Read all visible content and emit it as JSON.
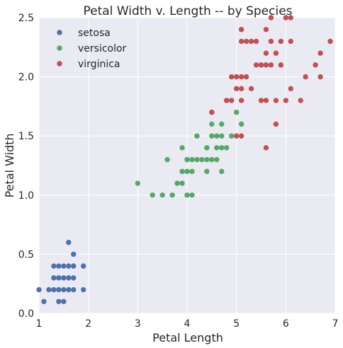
{
  "chart_data": {
    "type": "scatter",
    "title": "Petal Width v. Length -- by Species",
    "xlabel": "Petal Length",
    "ylabel": "Petal Width",
    "xlim": [
      1,
      7
    ],
    "ylim": [
      0.0,
      2.5
    ],
    "xticks": [
      "1",
      "2",
      "3",
      "4",
      "5",
      "6",
      "7"
    ],
    "yticks": [
      "0.0",
      "0.5",
      "1.0",
      "1.5",
      "2.0",
      "2.5"
    ],
    "grid": true,
    "legend_position": "top-left",
    "background_color": "#eaeaf2",
    "series": [
      {
        "name": "setosa",
        "color": "#4c72b0",
        "points": [
          [
            1.0,
            0.2
          ],
          [
            1.1,
            0.1
          ],
          [
            1.2,
            0.2
          ],
          [
            1.3,
            0.2
          ],
          [
            1.3,
            0.3
          ],
          [
            1.3,
            0.4
          ],
          [
            1.4,
            0.1
          ],
          [
            1.4,
            0.2
          ],
          [
            1.4,
            0.3
          ],
          [
            1.5,
            0.1
          ],
          [
            1.5,
            0.2
          ],
          [
            1.5,
            0.4
          ],
          [
            1.6,
            0.2
          ],
          [
            1.6,
            0.4
          ],
          [
            1.6,
            0.6
          ],
          [
            1.7,
            0.2
          ],
          [
            1.7,
            0.3
          ],
          [
            1.7,
            0.4
          ],
          [
            1.7,
            0.5
          ],
          [
            1.9,
            0.2
          ],
          [
            1.9,
            0.4
          ],
          [
            1.5,
            0.3
          ],
          [
            1.6,
            0.3
          ],
          [
            1.4,
            0.4
          ]
        ]
      },
      {
        "name": "versicolor",
        "color": "#55a868",
        "points": [
          [
            3.0,
            1.1
          ],
          [
            3.3,
            1.0
          ],
          [
            3.5,
            1.0
          ],
          [
            3.6,
            1.3
          ],
          [
            3.7,
            1.0
          ],
          [
            3.8,
            1.1
          ],
          [
            3.9,
            1.1
          ],
          [
            3.9,
            1.2
          ],
          [
            3.9,
            1.4
          ],
          [
            4.0,
            1.0
          ],
          [
            4.0,
            1.2
          ],
          [
            4.0,
            1.3
          ],
          [
            4.1,
            1.0
          ],
          [
            4.1,
            1.2
          ],
          [
            4.1,
            1.3
          ],
          [
            4.2,
            1.3
          ],
          [
            4.2,
            1.5
          ],
          [
            4.3,
            1.3
          ],
          [
            4.4,
            1.2
          ],
          [
            4.4,
            1.3
          ],
          [
            4.4,
            1.4
          ],
          [
            4.5,
            1.3
          ],
          [
            4.5,
            1.5
          ],
          [
            4.5,
            1.6
          ],
          [
            4.5,
            1.7
          ],
          [
            4.6,
            1.3
          ],
          [
            4.6,
            1.4
          ],
          [
            4.6,
            1.5
          ],
          [
            4.7,
            1.2
          ],
          [
            4.7,
            1.4
          ],
          [
            4.7,
            1.5
          ],
          [
            4.7,
            1.6
          ],
          [
            4.8,
            1.4
          ],
          [
            4.8,
            1.8
          ],
          [
            4.9,
            1.5
          ],
          [
            5.0,
            1.7
          ],
          [
            5.1,
            1.6
          ],
          [
            4.0,
            1.3
          ]
        ]
      },
      {
        "name": "virginica",
        "color": "#c44e52",
        "points": [
          [
            4.5,
            1.7
          ],
          [
            4.8,
            1.8
          ],
          [
            4.9,
            1.8
          ],
          [
            4.9,
            2.0
          ],
          [
            5.0,
            1.5
          ],
          [
            5.0,
            1.9
          ],
          [
            5.0,
            2.0
          ],
          [
            5.1,
            1.5
          ],
          [
            5.1,
            1.8
          ],
          [
            5.1,
            1.9
          ],
          [
            5.1,
            2.0
          ],
          [
            5.1,
            2.3
          ],
          [
            5.1,
            2.4
          ],
          [
            5.2,
            2.0
          ],
          [
            5.2,
            2.3
          ],
          [
            5.3,
            1.9
          ],
          [
            5.3,
            2.3
          ],
          [
            5.4,
            2.1
          ],
          [
            5.4,
            2.3
          ],
          [
            5.5,
            1.8
          ],
          [
            5.5,
            2.1
          ],
          [
            5.6,
            1.4
          ],
          [
            5.6,
            1.8
          ],
          [
            5.6,
            2.1
          ],
          [
            5.6,
            2.2
          ],
          [
            5.6,
            2.4
          ],
          [
            5.7,
            2.1
          ],
          [
            5.7,
            2.3
          ],
          [
            5.7,
            2.5
          ],
          [
            5.8,
            1.6
          ],
          [
            5.8,
            1.8
          ],
          [
            5.8,
            2.2
          ],
          [
            5.9,
            2.1
          ],
          [
            5.9,
            2.3
          ],
          [
            6.0,
            1.8
          ],
          [
            6.0,
            2.5
          ],
          [
            6.1,
            1.9
          ],
          [
            6.1,
            2.3
          ],
          [
            6.1,
            2.5
          ],
          [
            6.3,
            1.8
          ],
          [
            6.4,
            2.0
          ],
          [
            6.6,
            2.1
          ],
          [
            6.7,
            2.0
          ],
          [
            6.7,
            2.2
          ],
          [
            6.9,
            2.3
          ],
          [
            5.5,
            2.1
          ]
        ]
      }
    ]
  }
}
